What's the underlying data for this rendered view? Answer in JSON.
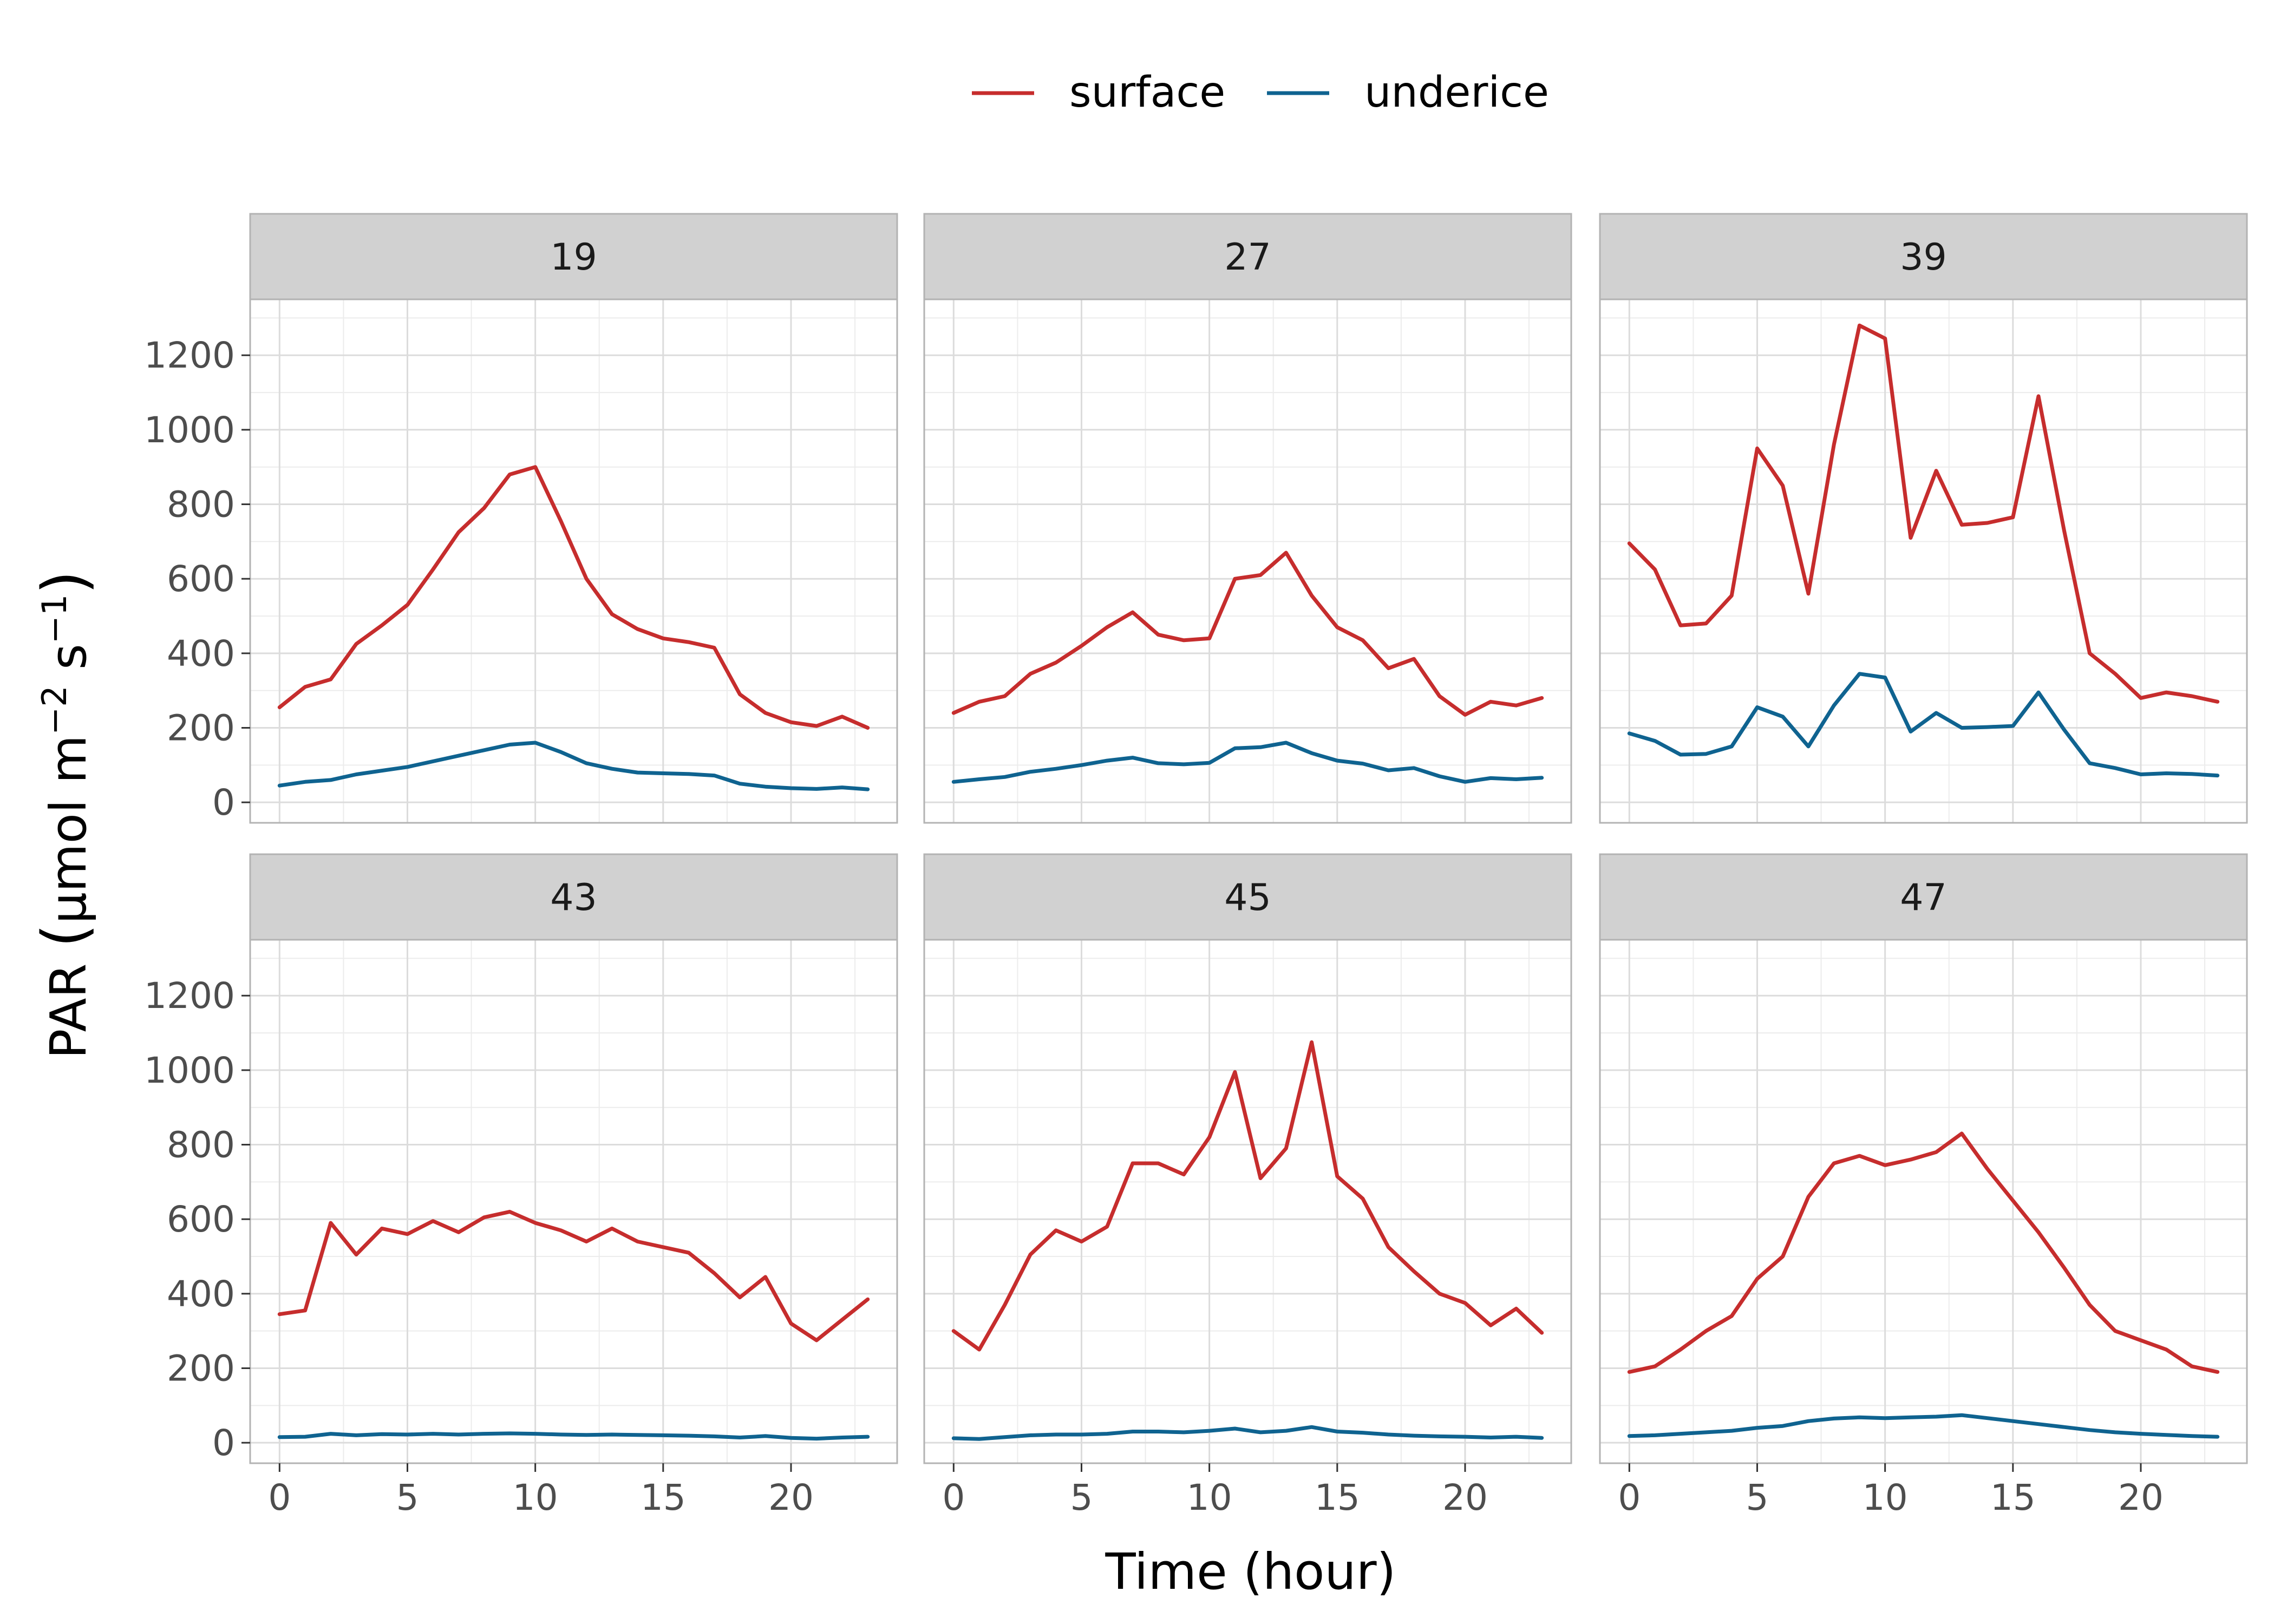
{
  "chart_data": {
    "type": "line",
    "facet_labels": [
      "19",
      "27",
      "39",
      "43",
      "45",
      "47"
    ],
    "xlabel": "Time (hour)",
    "ylabel": {
      "pre": "PAR  ",
      "paren_open": "(",
      "main": "µmol m",
      "exp_m": "−2",
      "mid": " s",
      "exp_s": "−1",
      "paren_close": ")"
    },
    "x_ticks": [
      "0",
      "5",
      "10",
      "15",
      "20"
    ],
    "y_ticks": [
      "0",
      "200",
      "400",
      "600",
      "800",
      "1000",
      "1200"
    ],
    "xlim": [
      -1.15,
      24.15
    ],
    "ylim": [
      -55,
      1350
    ],
    "grid": true,
    "legend": {
      "position": "top",
      "entries": [
        {
          "name": "surface",
          "color": "#c62d2d"
        },
        {
          "name": "underice",
          "color": "#0f6390"
        }
      ]
    },
    "x": [
      0,
      1,
      2,
      3,
      4,
      5,
      6,
      7,
      8,
      9,
      10,
      11,
      12,
      13,
      14,
      15,
      16,
      17,
      18,
      19,
      20,
      21,
      22,
      23
    ],
    "panels": [
      {
        "facet": "19",
        "series": [
          {
            "name": "surface",
            "values": [
              255,
              310,
              330,
              425,
              475,
              530,
              625,
              725,
              790,
              880,
              900,
              755,
              600,
              505,
              465,
              440,
              430,
              415,
              290,
              240,
              215,
              205,
              230,
              200
            ]
          },
          {
            "name": "underice",
            "values": [
              45,
              55,
              60,
              75,
              85,
              95,
              110,
              125,
              140,
              155,
              160,
              135,
              105,
              90,
              80,
              78,
              76,
              72,
              50,
              42,
              38,
              36,
              40,
              35
            ]
          }
        ]
      },
      {
        "facet": "27",
        "series": [
          {
            "name": "surface",
            "values": [
              240,
              270,
              285,
              345,
              375,
              420,
              470,
              510,
              450,
              435,
              440,
              600,
              610,
              670,
              555,
              470,
              435,
              360,
              385,
              285,
              235,
              270,
              260,
              280
            ]
          },
          {
            "name": "underice",
            "values": [
              55,
              62,
              68,
              82,
              90,
              100,
              112,
              120,
              105,
              102,
              106,
              145,
              148,
              160,
              132,
              112,
              104,
              86,
              92,
              70,
              55,
              65,
              62,
              66
            ]
          }
        ]
      },
      {
        "facet": "39",
        "series": [
          {
            "name": "surface",
            "values": [
              695,
              625,
              475,
              480,
              555,
              950,
              850,
              560,
              960,
              1280,
              1245,
              710,
              890,
              745,
              750,
              765,
              1090,
              730,
              400,
              345,
              280,
              295,
              285,
              270
            ]
          },
          {
            "name": "underice",
            "values": [
              185,
              165,
              128,
              130,
              150,
              255,
              230,
              150,
              260,
              345,
              335,
              190,
              240,
              200,
              202,
              205,
              295,
              195,
              105,
              92,
              75,
              78,
              76,
              72
            ]
          }
        ]
      },
      {
        "facet": "43",
        "series": [
          {
            "name": "surface",
            "values": [
              345,
              355,
              590,
              505,
              575,
              560,
              595,
              565,
              605,
              620,
              590,
              570,
              540,
              575,
              540,
              525,
              510,
              455,
              390,
              445,
              320,
              275,
              330,
              385
            ]
          },
          {
            "name": "underice",
            "values": [
              15,
              16,
              24,
              20,
              23,
              22,
              24,
              22,
              24,
              25,
              24,
              22,
              21,
              22,
              21,
              20,
              19,
              17,
              14,
              18,
              13,
              11,
              14,
              16
            ]
          }
        ]
      },
      {
        "facet": "45",
        "series": [
          {
            "name": "surface",
            "values": [
              300,
              250,
              370,
              505,
              570,
              540,
              580,
              750,
              750,
              720,
              820,
              995,
              710,
              790,
              1075,
              715,
              655,
              525,
              460,
              400,
              375,
              315,
              360,
              295
            ]
          },
          {
            "name": "underice",
            "values": [
              12,
              10,
              15,
              20,
              22,
              22,
              24,
              30,
              30,
              28,
              32,
              38,
              28,
              32,
              42,
              30,
              27,
              22,
              19,
              17,
              16,
              14,
              16,
              13
            ]
          }
        ]
      },
      {
        "facet": "47",
        "series": [
          {
            "name": "surface",
            "values": [
              190,
              205,
              250,
              300,
              340,
              440,
              500,
              660,
              750,
              770,
              745,
              760,
              780,
              830,
              735,
              650,
              565,
              470,
              370,
              300,
              275,
              250,
              205,
              190
            ]
          },
          {
            "name": "underice",
            "values": [
              18,
              20,
              24,
              28,
              32,
              40,
              45,
              58,
              65,
              68,
              66,
              68,
              70,
              74,
              66,
              58,
              50,
              42,
              34,
              28,
              24,
              21,
              18,
              16
            ]
          }
        ]
      }
    ]
  }
}
